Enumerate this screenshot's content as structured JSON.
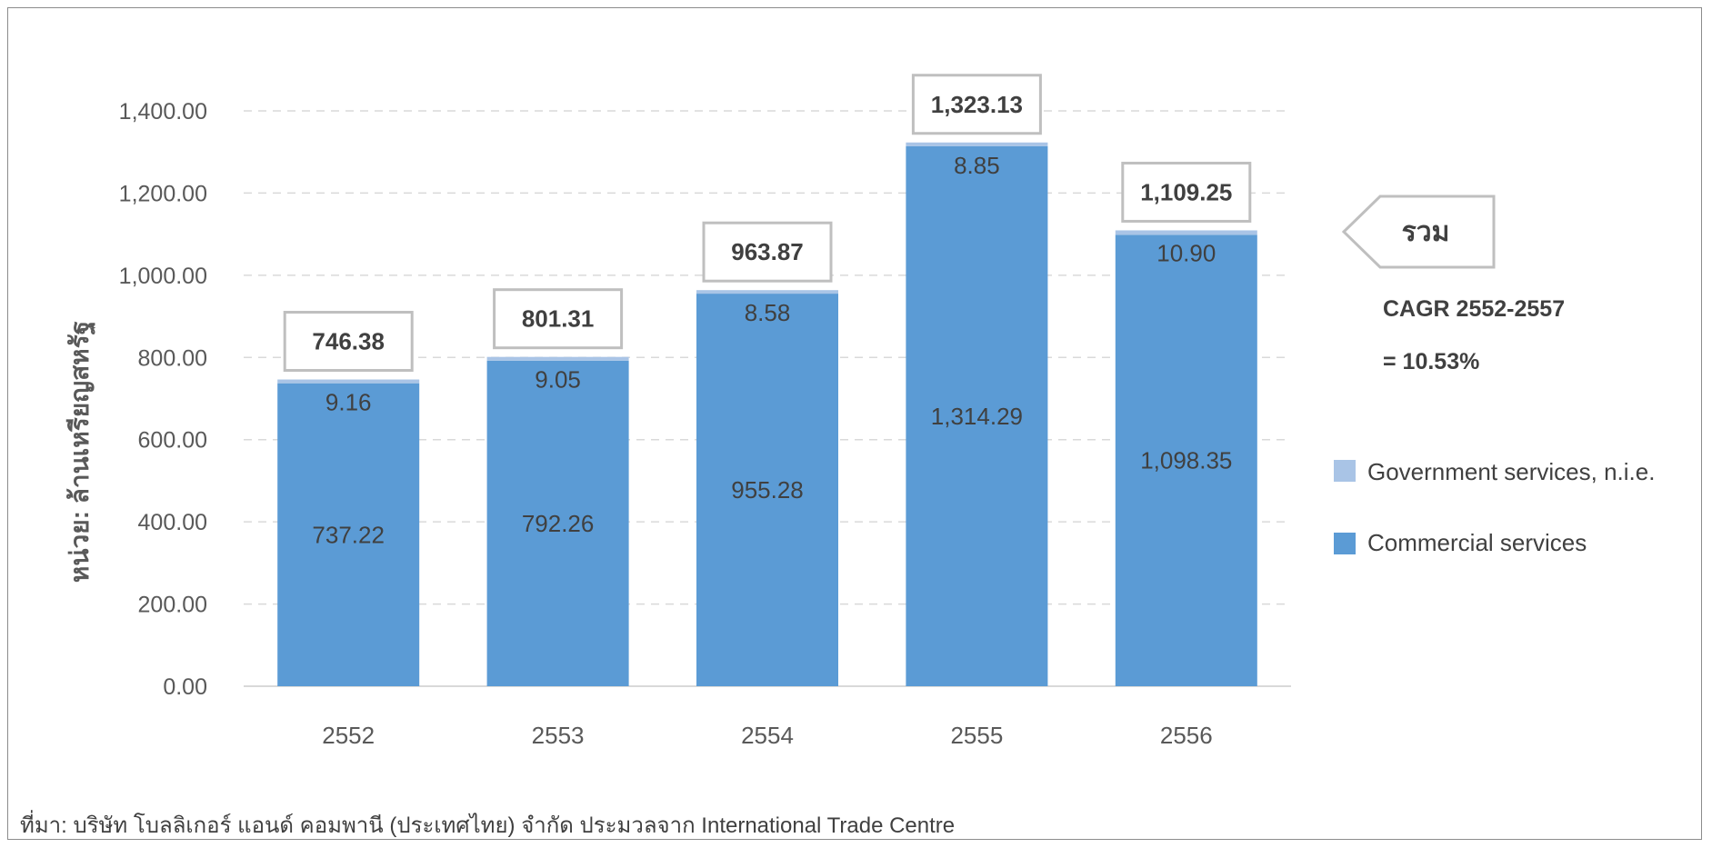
{
  "chart_data": {
    "type": "bar",
    "stacked": true,
    "categories": [
      "2552",
      "2553",
      "2554",
      "2555",
      "2556"
    ],
    "series": [
      {
        "name": "Commercial services",
        "color": "#5b9bd5",
        "values": [
          737.22,
          792.26,
          955.28,
          1314.29,
          1098.35
        ],
        "labels": [
          "737.22",
          "792.26",
          "955.28",
          "1,314.29",
          "1,098.35"
        ]
      },
      {
        "name": "Government services, n.i.e.",
        "color": "#a9c4e6",
        "values": [
          9.16,
          9.05,
          8.58,
          8.85,
          10.9
        ],
        "labels": [
          "9.16",
          "9.05",
          "8.58",
          "8.85",
          "10.90"
        ]
      }
    ],
    "totals": [
      746.38,
      801.31,
      963.87,
      1323.13,
      1109.25
    ],
    "total_labels": [
      "746.38",
      "801.31",
      "963.87",
      "1,323.13",
      "1,109.25"
    ],
    "ylabel": "หน่วย: ล้านเหรียญสหรัฐ",
    "ylim": [
      0,
      1400
    ],
    "yticks": [
      0,
      200,
      400,
      600,
      800,
      1000,
      1200,
      1400
    ],
    "ytick_labels": [
      "0.00",
      "200.00",
      "400.00",
      "600.00",
      "800.00",
      "1,000.00",
      "1,200.00",
      "1,400.00"
    ],
    "grid": true,
    "legend_position": "right",
    "total_callout": "รวม",
    "cagr_line1": "CAGR 2552-2557",
    "cagr_line2": "= 10.53%",
    "source": "ที่มา: บริษัท โบลลิเกอร์ แอนด์ คอมพานี (ประเทศไทย) จำกัด ประมวลจาก International Trade Centre"
  }
}
